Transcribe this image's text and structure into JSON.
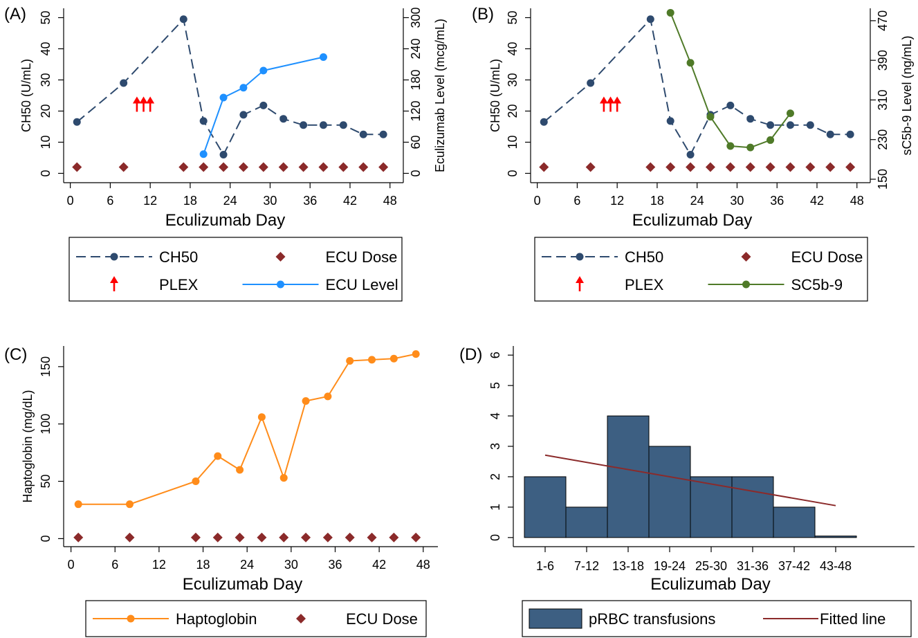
{
  "chart_data": [
    {
      "panel": "(A)",
      "type": "line",
      "xlabel": "Eculizumab Day",
      "ylabel": "CH50 (U/mL)",
      "y2label": "Eculizumab Level (mcg/mL)",
      "xlim": [
        -1,
        50
      ],
      "ylim": [
        -3,
        53
      ],
      "y2lim": [
        -18,
        318
      ],
      "x_ticks": [
        0,
        6,
        12,
        18,
        24,
        30,
        36,
        42,
        48
      ],
      "y_ticks": [
        0,
        10,
        20,
        30,
        40,
        50
      ],
      "y2_ticks": [
        0,
        60,
        120,
        180,
        240,
        300
      ],
      "grid": false,
      "legend_position": "bottom",
      "series": [
        {
          "name": "CH50",
          "axis": "left",
          "style": "dashed-marker",
          "color": "#2E4A6E",
          "x": [
            1,
            8,
            17,
            20,
            23,
            26,
            29,
            32,
            35,
            38,
            41,
            44,
            47
          ],
          "y": [
            16.5,
            29,
            49.5,
            16.8,
            6,
            18.8,
            21.8,
            17.5,
            15.5,
            15.5,
            15.5,
            12.5,
            12.5
          ]
        },
        {
          "name": "ECU Level",
          "axis": "right",
          "style": "solid-marker",
          "color": "#1E90FF",
          "x": [
            20,
            23,
            26,
            29,
            38
          ],
          "y": [
            37,
            146,
            165,
            198,
            224
          ]
        },
        {
          "name": "ECU Dose",
          "axis": "left",
          "style": "diamond",
          "color": "#8B2A2A",
          "x": [
            1,
            8,
            17,
            20,
            23,
            26,
            29,
            32,
            35,
            38,
            41,
            44,
            47
          ],
          "y": [
            2,
            2,
            2,
            2,
            2,
            2,
            2,
            2,
            2,
            2,
            2,
            2,
            2
          ]
        },
        {
          "name": "PLEX",
          "axis": "left",
          "style": "arrow",
          "color": "#FF0000",
          "x": [
            10,
            11,
            12
          ],
          "y": [
            22,
            22,
            22
          ]
        }
      ]
    },
    {
      "panel": "(B)",
      "type": "line",
      "xlabel": "Eculizumab Day",
      "ylabel": "CH50 (U/mL)",
      "y2label": "sC5b-9 Level (ng/mL)",
      "xlim": [
        -1,
        50
      ],
      "ylim": [
        -3,
        53
      ],
      "y2lim": [
        143,
        495
      ],
      "x_ticks": [
        0,
        6,
        12,
        18,
        24,
        30,
        36,
        42,
        48
      ],
      "y_ticks": [
        0,
        10,
        20,
        30,
        40,
        50
      ],
      "y2_ticks": [
        150,
        230,
        310,
        390,
        470
      ],
      "grid": false,
      "legend_position": "bottom",
      "series": [
        {
          "name": "CH50",
          "axis": "left",
          "style": "dashed-marker",
          "color": "#2E4A6E",
          "x": [
            1,
            8,
            17,
            20,
            23,
            26,
            29,
            32,
            35,
            38,
            41,
            44,
            47
          ],
          "y": [
            16.5,
            29,
            49.5,
            16.8,
            6,
            18.8,
            21.8,
            17.5,
            15.5,
            15.5,
            15.5,
            12.5,
            12.5
          ]
        },
        {
          "name": "SC5b-9",
          "axis": "right",
          "style": "solid-marker",
          "color": "#4F7A28",
          "x": [
            20,
            23,
            26,
            29,
            32,
            35,
            38
          ],
          "y": [
            486,
            385,
            276,
            217,
            214,
            229,
            283
          ]
        },
        {
          "name": "ECU Dose",
          "axis": "left",
          "style": "diamond",
          "color": "#8B2A2A",
          "x": [
            1,
            8,
            17,
            20,
            23,
            26,
            29,
            32,
            35,
            38,
            41,
            44,
            47
          ],
          "y": [
            2,
            2,
            2,
            2,
            2,
            2,
            2,
            2,
            2,
            2,
            2,
            2,
            2
          ]
        },
        {
          "name": "PLEX",
          "axis": "left",
          "style": "arrow",
          "color": "#FF0000",
          "x": [
            10,
            11,
            12
          ],
          "y": [
            22,
            22,
            22
          ]
        }
      ]
    },
    {
      "panel": "(C)",
      "type": "line",
      "xlabel": "Eculizumab Day",
      "ylabel": "Haptoglobin (mg/dL)",
      "xlim": [
        -1,
        50
      ],
      "ylim": [
        -7,
        168
      ],
      "x_ticks": [
        0,
        6,
        12,
        18,
        24,
        30,
        36,
        42,
        48
      ],
      "y_ticks": [
        0,
        50,
        100,
        150
      ],
      "grid": false,
      "legend_position": "bottom",
      "series": [
        {
          "name": "Haptoglobin",
          "axis": "left",
          "style": "solid-marker",
          "color": "#FF8C1A",
          "x": [
            1,
            8,
            17,
            20,
            23,
            26,
            29,
            32,
            35,
            38,
            41,
            44,
            47
          ],
          "y": [
            30,
            30,
            50,
            72,
            60,
            106,
            53,
            120,
            124,
            155,
            156,
            157,
            161
          ]
        },
        {
          "name": "ECU Dose",
          "axis": "left",
          "style": "diamond",
          "color": "#8B2A2A",
          "x": [
            1,
            8,
            17,
            20,
            23,
            26,
            29,
            32,
            35,
            38,
            41,
            44,
            47
          ],
          "y": [
            1,
            1,
            1,
            1,
            1,
            1,
            1,
            1,
            1,
            1,
            1,
            1,
            1
          ]
        }
      ]
    },
    {
      "panel": "(D)",
      "type": "bar",
      "xlabel": "Eculizumab Day",
      "ylabel": "",
      "ylim": [
        -0.3,
        6.3
      ],
      "y_ticks": [
        0,
        1,
        2,
        3,
        4,
        5,
        6
      ],
      "categories": [
        "1-6",
        "7-12",
        "13-18",
        "19-24",
        "25-30",
        "31-36",
        "37-42",
        "43-48"
      ],
      "grid": false,
      "legend_position": "bottom",
      "series": [
        {
          "name": "pRBC transfusions",
          "color": "#3D5F82",
          "values": [
            2,
            1,
            4,
            3,
            2,
            2,
            1,
            0.05
          ]
        },
        {
          "name": "Fitted line",
          "color": "#8B2A2A",
          "style": "line",
          "x": [
            1,
            8
          ],
          "values": [
            2.71,
            1.05
          ]
        }
      ]
    }
  ]
}
